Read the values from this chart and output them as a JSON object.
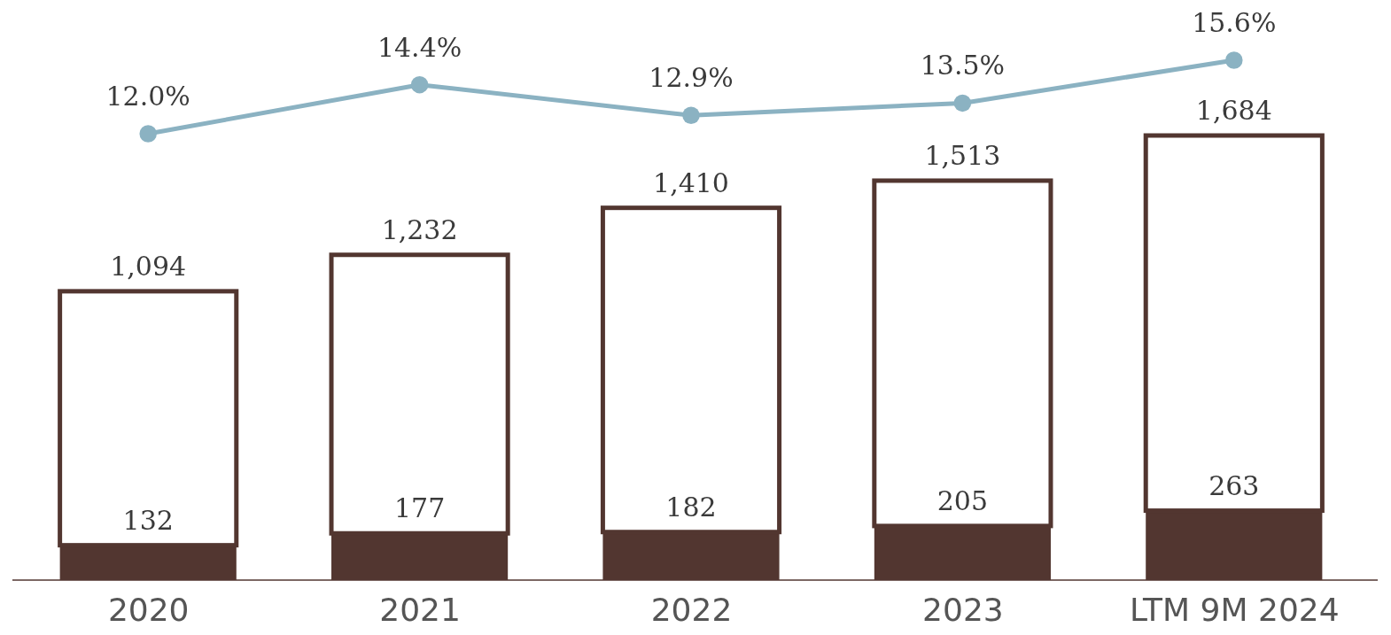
{
  "chart_data": [
    {
      "type": "bar",
      "stacked": true,
      "categories": [
        "2020",
        "2021",
        "2022",
        "2023",
        "LTM 9M 2024"
      ],
      "series": [
        {
          "color": "#523630",
          "values": [
            132,
            177,
            182,
            205,
            263
          ],
          "value_labels": [
            "132",
            "177",
            "182",
            "205",
            "263"
          ]
        },
        {
          "color": "#ffffff",
          "values": [
            962,
            1055,
            1228,
            1308,
            1421
          ]
        }
      ],
      "totals": [
        "1,094",
        "1,232",
        "1,410",
        "1,513",
        "1,684"
      ]
    },
    {
      "type": "line",
      "categories": [
        null,
        null,
        null,
        null,
        null
      ],
      "series": [
        {
          "color": "#8bb2c2",
          "values": [
            12.0,
            14.4,
            12.9,
            13.5,
            15.6
          ],
          "value_labels": [
            "12.0%",
            "14.4%",
            "12.9%",
            "13.5%",
            "15.6%"
          ]
        }
      ],
      "marker": "circle",
      "line_style": "solid"
    }
  ]
}
